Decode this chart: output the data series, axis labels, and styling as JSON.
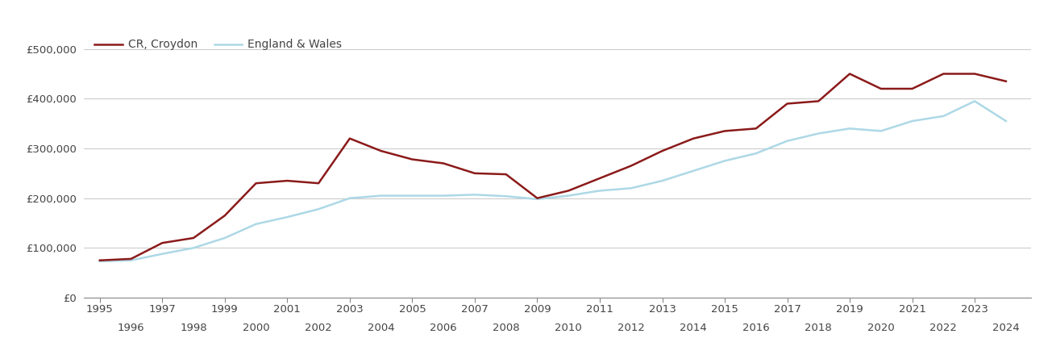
{
  "croydon_years": [
    1995,
    1996,
    1997,
    1998,
    1999,
    2000,
    2001,
    2002,
    2003,
    2004,
    2005,
    2006,
    2007,
    2008,
    2009,
    2010,
    2011,
    2012,
    2013,
    2014,
    2015,
    2016,
    2017,
    2018,
    2019,
    2020,
    2021,
    2022,
    2023,
    2024
  ],
  "croydon_values": [
    75000,
    78000,
    110000,
    120000,
    165000,
    230000,
    235000,
    230000,
    320000,
    295000,
    278000,
    270000,
    250000,
    248000,
    200000,
    215000,
    240000,
    265000,
    295000,
    320000,
    335000,
    340000,
    390000,
    395000,
    450000,
    420000,
    420000,
    450000,
    450000,
    435000
  ],
  "ew_years": [
    1995,
    1996,
    1997,
    1998,
    1999,
    2000,
    2001,
    2002,
    2003,
    2004,
    2005,
    2006,
    2007,
    2008,
    2009,
    2010,
    2011,
    2012,
    2013,
    2014,
    2015,
    2016,
    2017,
    2018,
    2019,
    2020,
    2021,
    2022,
    2023,
    2024
  ],
  "ew_values": [
    73000,
    75000,
    88000,
    100000,
    120000,
    148000,
    162000,
    178000,
    200000,
    205000,
    205000,
    205000,
    207000,
    204000,
    198000,
    205000,
    215000,
    220000,
    235000,
    255000,
    275000,
    290000,
    315000,
    330000,
    340000,
    335000,
    355000,
    365000,
    395000,
    355000
  ],
  "croydon_color": "#8B1A1A",
  "ew_color": "#ADD8E6",
  "croydon_label": "CR, Croydon",
  "ew_label": "England & Wales",
  "yticks": [
    0,
    100000,
    200000,
    300000,
    400000,
    500000
  ],
  "ytick_labels": [
    "£0",
    "£100,000",
    "£200,000",
    "£300,000",
    "£400,000",
    "£500,000"
  ],
  "ylim_max": 540000,
  "xlim_min": 1994.5,
  "xlim_max": 2024.8,
  "bg_color": "#ffffff",
  "grid_color": "#cccccc",
  "line_width": 1.8,
  "legend_fontsize": 10,
  "tick_fontsize": 9.5,
  "odd_years": [
    1995,
    1997,
    1999,
    2001,
    2003,
    2005,
    2007,
    2009,
    2011,
    2013,
    2015,
    2017,
    2019,
    2021,
    2023
  ],
  "even_years": [
    1996,
    1998,
    2000,
    2002,
    2004,
    2006,
    2008,
    2010,
    2012,
    2014,
    2016,
    2018,
    2020,
    2022,
    2024
  ]
}
